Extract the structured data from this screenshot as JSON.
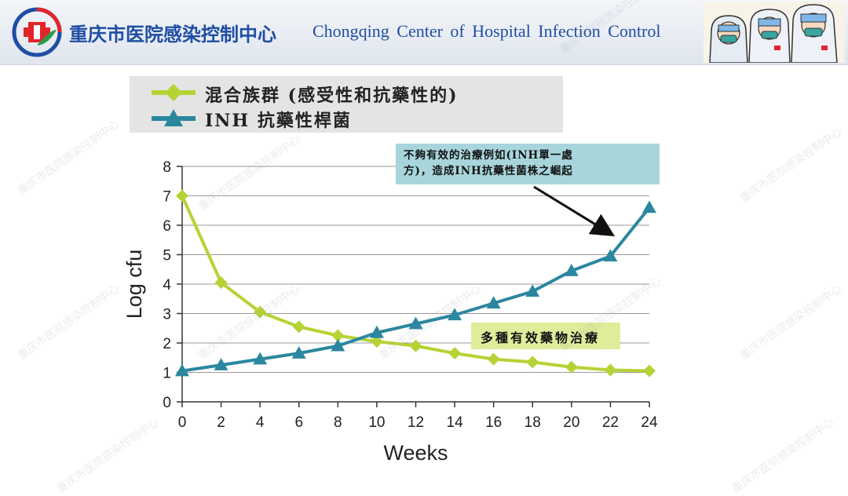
{
  "header": {
    "title_cn": "重庆市医院感染控制中心",
    "title_en": "Chongqing Center of Hospital Infection Control"
  },
  "watermark": "重庆市医院感染控制中心",
  "colors": {
    "mixed": "#b5d334",
    "inh": "#2b879f",
    "header_text": "#1f4ea3"
  },
  "chart_data": {
    "type": "line",
    "xlabel": "Weeks",
    "ylabel": "Log cfu",
    "xlim": [
      0,
      24
    ],
    "ylim": [
      0,
      8
    ],
    "x_ticks": [
      0,
      2,
      4,
      6,
      8,
      10,
      12,
      14,
      16,
      18,
      20,
      22,
      24
    ],
    "y_ticks": [
      0,
      1,
      2,
      3,
      4,
      5,
      6,
      7,
      8
    ],
    "grid": true,
    "legend_position": "top-left",
    "series": [
      {
        "name": "混合族群 (感受性和抗藥性的)",
        "marker": "diamond",
        "x": [
          0,
          2,
          4,
          6,
          8,
          10,
          12,
          14,
          16,
          18,
          20,
          22,
          24
        ],
        "values": [
          7.0,
          4.05,
          3.05,
          2.55,
          2.25,
          2.05,
          1.9,
          1.65,
          1.45,
          1.35,
          1.18,
          1.08,
          1.05
        ]
      },
      {
        "name": "INH 抗藥性桿菌",
        "marker": "triangle",
        "x": [
          0,
          2,
          4,
          6,
          8,
          10,
          12,
          14,
          16,
          18,
          20,
          22,
          24
        ],
        "values": [
          1.05,
          1.25,
          1.45,
          1.65,
          1.9,
          2.35,
          2.65,
          2.95,
          3.35,
          3.75,
          4.45,
          4.95,
          6.6
        ]
      }
    ],
    "annotations": {
      "callout_line1": "不夠有效的治療例如(INH單一處",
      "callout_line2": "方)，造成INH抗藥性菌株之崛起",
      "therapy": "多種有效藥物治療"
    }
  }
}
